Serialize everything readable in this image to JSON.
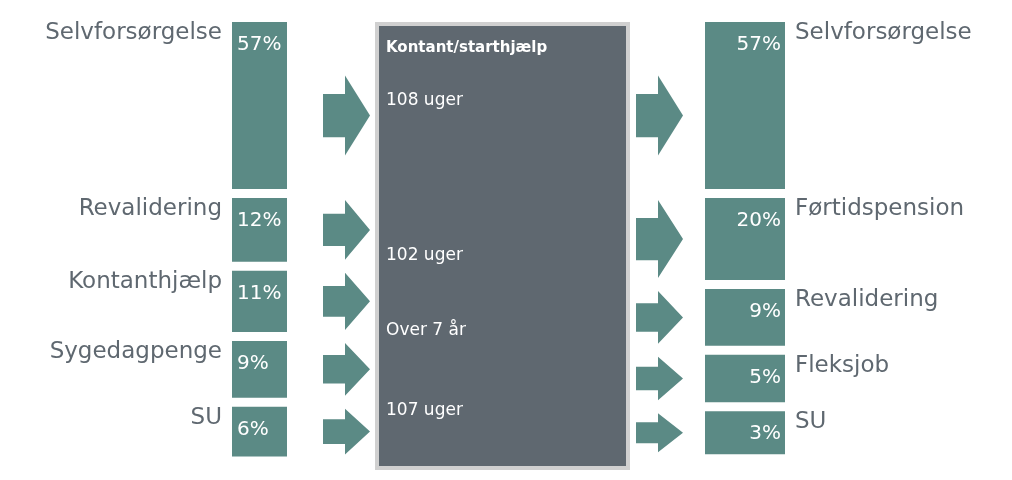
{
  "chart_data": [
    {
      "type": "other",
      "categories": [
        "Selvforsørgelse",
        "Revalidering",
        "Kontanthjælp",
        "Sygedagpenge",
        "SU"
      ],
      "values": [
        57,
        12,
        11,
        9,
        6
      ],
      "value_labels": [
        "57%",
        "12%",
        "11%",
        "9%",
        "6%"
      ],
      "color": "#5b8a85"
    },
    {
      "type": "other",
      "title": "Kontant/starthjælp",
      "annotations": [
        "108 uger",
        "102 uger",
        "Over 7 år",
        "107 uger"
      ],
      "color": "#5f6870"
    },
    {
      "type": "other",
      "categories": [
        "Selvforsørgelse",
        "Førtidspension",
        "Revalidering",
        "Fleksjob",
        "SU"
      ],
      "values": [
        57,
        20,
        9,
        5,
        3
      ],
      "value_labels": [
        "57%",
        "20%",
        "9%",
        "5%",
        "3%"
      ],
      "color": "#5b8a85"
    }
  ]
}
